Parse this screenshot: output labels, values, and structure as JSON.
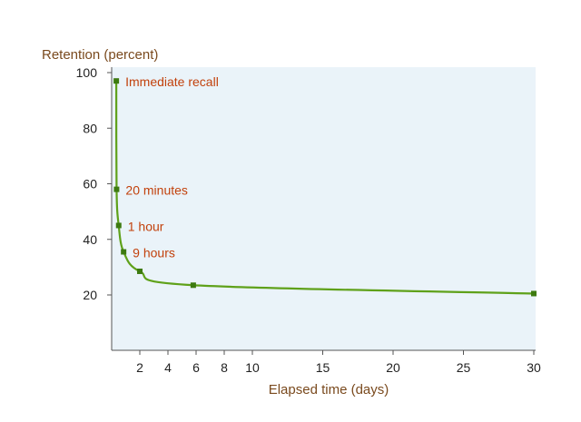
{
  "colors": {
    "plot_background": "#eaf3f9",
    "curve": "#5fa11a",
    "marker": "#3d7a10",
    "axis": "#555555",
    "axis_title": "#7a4a1e",
    "annotation": "#c2410c"
  },
  "chart_data": {
    "type": "line",
    "title": "",
    "xlabel": "Elapsed time (days)",
    "ylabel": "Retention (percent)",
    "xlim": [
      0,
      30
    ],
    "ylim": [
      0,
      100
    ],
    "grid": false,
    "x_ticks": [
      2,
      4,
      6,
      8,
      10,
      15,
      20,
      25,
      30
    ],
    "y_ticks": [
      20,
      40,
      60,
      80,
      100
    ],
    "series": [
      {
        "x": [
          0.33,
          0.35,
          0.5,
          0.85,
          2,
          5.8,
          30
        ],
        "y": [
          97,
          58,
          45,
          35.5,
          28.5,
          23.5,
          20.5
        ]
      }
    ],
    "annotations": [
      {
        "text": "Immediate recall",
        "x": 0.33,
        "y": 97
      },
      {
        "text": "20 minutes",
        "x": 0.35,
        "y": 58
      },
      {
        "text": "1 hour",
        "x": 0.5,
        "y": 45
      },
      {
        "text": "9 hours",
        "x": 0.85,
        "y": 35.5
      }
    ]
  }
}
